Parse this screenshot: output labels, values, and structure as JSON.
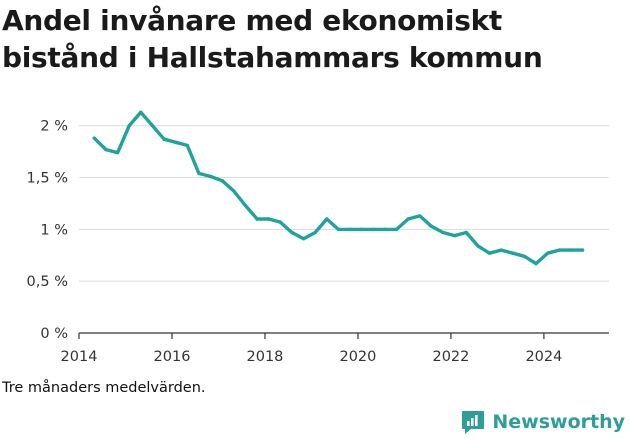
{
  "title": "Andel invånare med ekonomiskt bistånd i Hallstahammars kommun",
  "note": "Tre månaders medelvärden.",
  "brand": {
    "name": "Newsworthy",
    "logo_icon": "newsworthy-logo-icon",
    "color": "#2d9e98"
  },
  "chart_data": {
    "type": "line",
    "title": "Andel invånare med ekonomiskt bistånd i Hallstahammars kommun",
    "xlabel": "",
    "ylabel": "",
    "xlim": [
      2014.0,
      2025.4
    ],
    "ylim": [
      0,
      2.2
    ],
    "x_ticks": [
      2014,
      2016,
      2018,
      2020,
      2022,
      2024
    ],
    "y_ticks": [
      0,
      0.5,
      1,
      1.5,
      2
    ],
    "y_tick_labels": [
      "0 %",
      "0,5 %",
      "1 %",
      "1,5 %",
      "2 %"
    ],
    "grid": "horizontal",
    "line_color": "#1fa39b",
    "series": [
      {
        "x": [
          2014.33,
          2014.58,
          2014.83,
          2015.08,
          2015.33,
          2015.58,
          2015.83,
          2016.08,
          2016.33,
          2016.58,
          2016.83,
          2017.08,
          2017.33,
          2017.58,
          2017.83,
          2018.08,
          2018.33,
          2018.58,
          2018.83,
          2019.08,
          2019.33,
          2019.58,
          2019.83,
          2020.08,
          2020.33,
          2020.58,
          2020.83,
          2021.08,
          2021.33,
          2021.58,
          2021.83,
          2022.08,
          2022.33,
          2022.58,
          2022.83,
          2023.08,
          2023.33,
          2023.58,
          2023.83,
          2024.08,
          2024.33,
          2024.58,
          2024.83
        ],
        "values": [
          1.88,
          1.77,
          1.74,
          2.0,
          2.13,
          2.0,
          1.87,
          1.84,
          1.81,
          1.54,
          1.51,
          1.47,
          1.37,
          1.23,
          1.1,
          1.1,
          1.07,
          0.97,
          0.91,
          0.97,
          1.1,
          1.0,
          1.0,
          1.0,
          1.0,
          1.0,
          1.0,
          1.1,
          1.13,
          1.03,
          0.97,
          0.94,
          0.97,
          0.84,
          0.77,
          0.8,
          0.77,
          0.74,
          0.67,
          0.77,
          0.8,
          0.8,
          0.8
        ]
      }
    ]
  }
}
